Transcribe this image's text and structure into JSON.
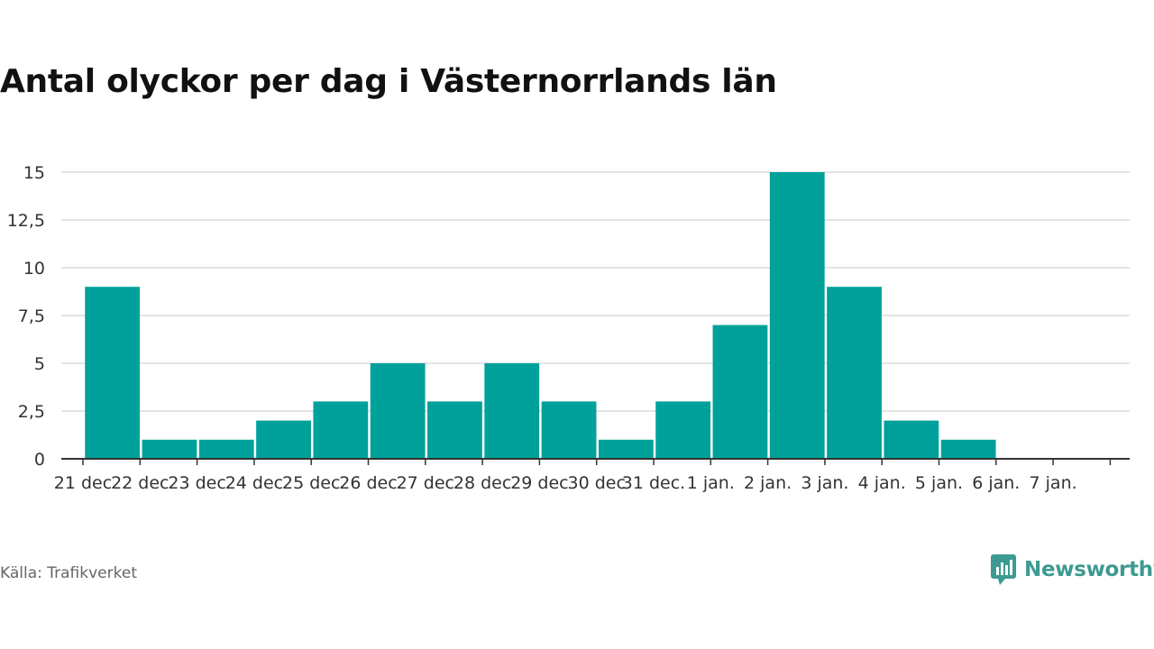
{
  "title": "Antal olyckor per dag i Västernorrlands län",
  "source": "Källa: Trafikverket",
  "brand": {
    "name": "Newsworthy",
    "icon": "newsworthy-logo-icon",
    "color": "#3d9a91"
  },
  "chart_data": {
    "type": "bar",
    "title": "Antal olyckor per dag i Västernorrlands län",
    "xlabel": "",
    "ylabel": "",
    "categories": [
      "21 dec",
      "22 dec",
      "23 dec",
      "24 dec",
      "25 dec",
      "26 dec",
      "27 dec",
      "28 dec",
      "29 dec",
      "30 dec",
      "31 dec.",
      "1 jan.",
      "2 jan.",
      "3 jan.",
      "4 jan.",
      "5 jan.",
      "6 jan.",
      "7 jan."
    ],
    "values": [
      9,
      1,
      1,
      2,
      3,
      5,
      3,
      5,
      3,
      1,
      3,
      7,
      15,
      9,
      2,
      1,
      0,
      0
    ],
    "yticks": [
      0,
      2.5,
      5,
      7.5,
      10,
      12.5,
      15
    ],
    "ytick_labels": [
      "0",
      "2,5",
      "5",
      "7,5",
      "10",
      "12,5",
      "15"
    ],
    "ylim": [
      0,
      15
    ],
    "grid": true,
    "legend": "none",
    "bar_color": "#00a19a"
  }
}
